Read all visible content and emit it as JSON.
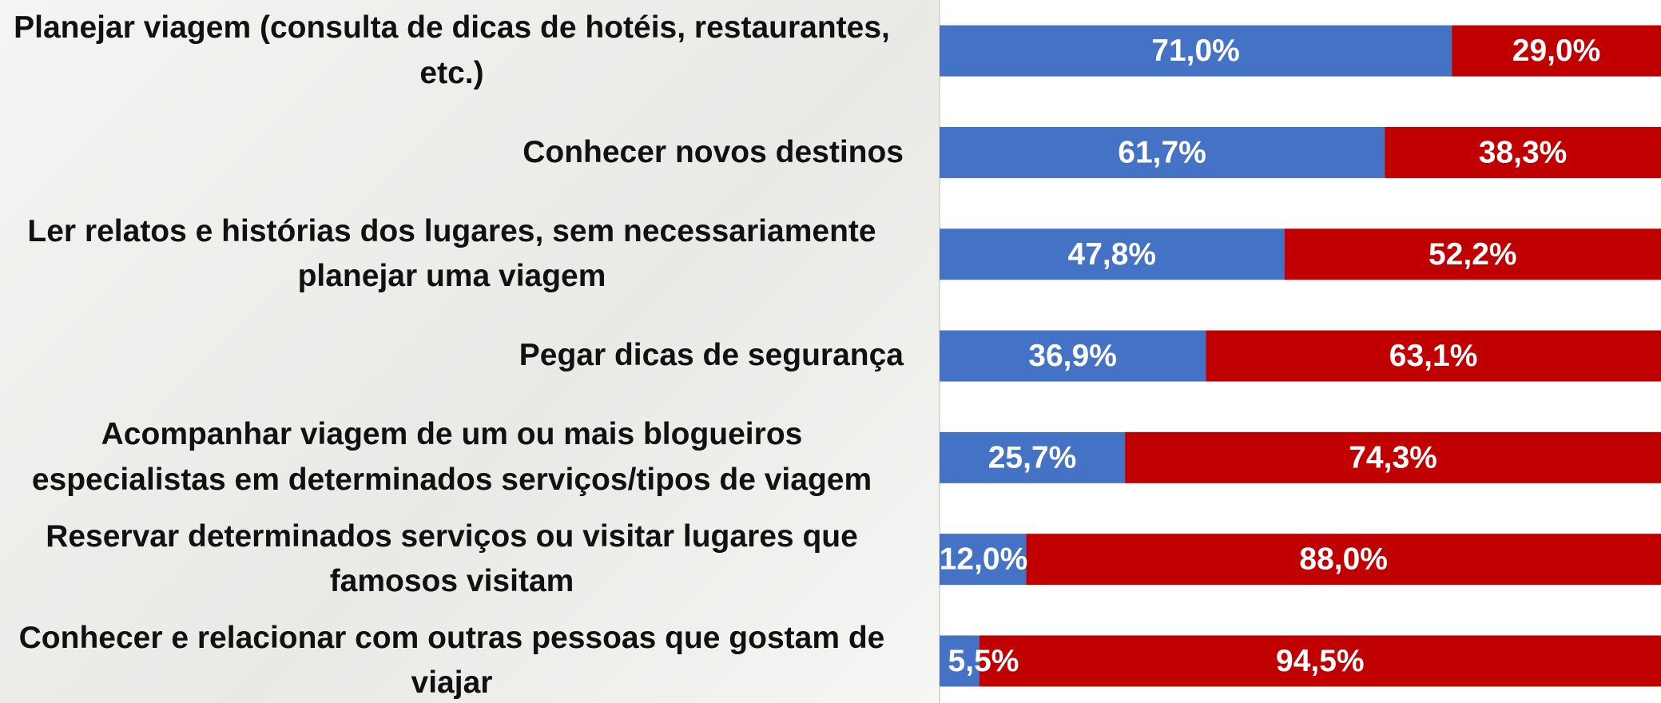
{
  "chart_data": {
    "type": "stacked_bar_horizontal",
    "categories": [
      "Planejar viagem (consulta de dicas de hotéis, restaurantes, etc.)",
      "Conhecer novos destinos",
      "Ler relatos e histórias dos lugares, sem necessariamente planejar uma viagem",
      "Pegar dicas de segurança",
      "Acompanhar viagem de um ou mais blogueiros especialistas em determinados serviços/tipos de viagem",
      "Reservar determinados serviços ou visitar lugares que famosos visitam",
      "Conhecer e relacionar com outras pessoas que gostam de viajar"
    ],
    "series": [
      {
        "color": "#4472c4",
        "values": [
          71.0,
          61.7,
          47.8,
          36.9,
          25.7,
          12.0,
          5.5
        ],
        "value_labels": [
          "71,0%",
          "61,7%",
          "47,8%",
          "36,9%",
          "25,7%",
          "12,0%",
          "5,5%"
        ]
      },
      {
        "color": "#c00000",
        "values": [
          29.0,
          38.3,
          52.2,
          63.1,
          74.3,
          88.0,
          94.5
        ],
        "value_labels": [
          "29,0%",
          "38,3%",
          "52,2%",
          "63,1%",
          "74,3%",
          "88,0%",
          "94,5%"
        ]
      }
    ],
    "xlim": [
      0,
      100
    ]
  }
}
